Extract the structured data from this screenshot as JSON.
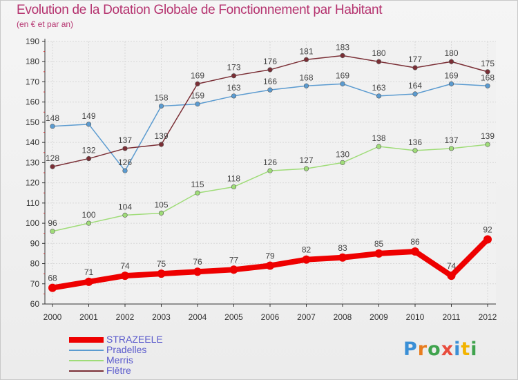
{
  "title": "Evolution de la Dotation Globale de Fonctionnement par Habitant",
  "subtitle": "(en € et par an)",
  "logo": {
    "letters": [
      {
        "ch": "P",
        "color": "#3a8fd6"
      },
      {
        "ch": "r",
        "color": "#e87c1e"
      },
      {
        "ch": "o",
        "color": "#3fa34d"
      },
      {
        "ch": "x",
        "color": "#e84c3d"
      },
      {
        "ch": "i",
        "color": "#3a8fd6"
      },
      {
        "ch": "t",
        "color": "#f2b300"
      },
      {
        "ch": "i",
        "color": "#3fa34d"
      }
    ]
  },
  "chart_data": {
    "type": "line",
    "title": "Evolution de la Dotation Globale de Fonctionnement par Habitant",
    "subtitle": "(en € et par an)",
    "xlabel": "",
    "ylabel": "",
    "x": [
      "2000",
      "2001",
      "2002",
      "2003",
      "2004",
      "2005",
      "2006",
      "2007",
      "2008",
      "2009",
      "2010",
      "2011",
      "2012"
    ],
    "ylim": [
      60,
      190
    ],
    "yticks": [
      60,
      70,
      80,
      90,
      100,
      110,
      120,
      130,
      140,
      150,
      160,
      170,
      180,
      190
    ],
    "grid": true,
    "legend_position": "bottom-left",
    "series": [
      {
        "name": "STRAZEELE",
        "color": "#ee0000",
        "width": 8,
        "values": [
          68,
          71,
          74,
          75,
          76,
          77,
          79,
          82,
          83,
          85,
          86,
          74,
          92
        ]
      },
      {
        "name": "Pradelles",
        "color": "#5b9bd0",
        "width": 1.5,
        "values": [
          148,
          149,
          126,
          158,
          159,
          163,
          166,
          168,
          169,
          163,
          164,
          169,
          168
        ]
      },
      {
        "name": "Merris",
        "color": "#9fdc78",
        "width": 1.5,
        "values": [
          96,
          100,
          104,
          105,
          115,
          118,
          126,
          127,
          130,
          138,
          136,
          137,
          139
        ]
      },
      {
        "name": "Flêtre",
        "color": "#7a2e35",
        "width": 1.5,
        "values": [
          128,
          132,
          137,
          139,
          169,
          173,
          176,
          181,
          183,
          180,
          177,
          180,
          175
        ]
      }
    ]
  }
}
